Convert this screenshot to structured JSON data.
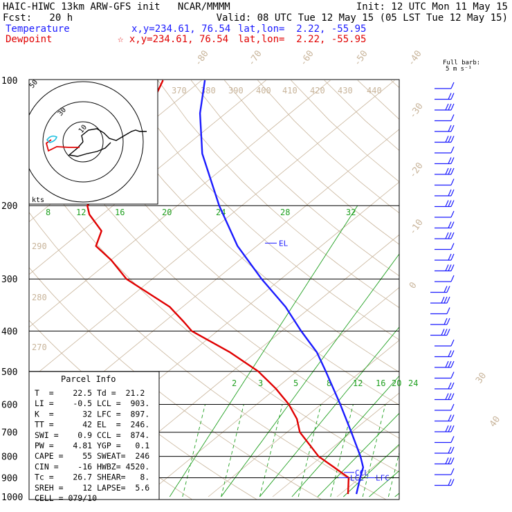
{
  "header": {
    "line1_left": "HAIC-HIWC 13km ARW-GFS init   NCAR/MMMM",
    "line1_right": "Init: 12 UTC Mon 11 May 15",
    "line2_left": "Fcst:   20 h",
    "line2_right": "Valid: 08 UTC Tue 12 May 15 (05 LST Tue 12 May 15)",
    "temp_label": "Temperature",
    "temp_xy": "x,y=234.61, 76.54",
    "temp_latlon": "lat,lon=  2.22, -55.95",
    "dew_label": "Dewpoint",
    "dew_xy": "☆ x,y=234.61, 76.54",
    "dew_latlon": "lat,lon=  2.22, -55.95",
    "barb_note_1": "Full barb:",
    "barb_note_2": "5 m s⁻¹"
  },
  "colors": {
    "temperature": "#1a1aff",
    "dewpoint": "#e00000",
    "isotherm": "#c8b49a",
    "mixing_ratio": "#20a020"
  },
  "parcel_info": {
    "title": "Parcel Info",
    "rows": [
      "T  =    22.5 Td =  21.2",
      "LI =    -0.5 LCL =  903.",
      "K  =      32 LFC =  897.",
      "TT =      42 EL  =  246.",
      "SWI =    0.9 CCL =  874.",
      "PW =    4.81 YGP =   0.1",
      "CAPE =    55 SWEAT=  246",
      "CIN =    -16 HWBZ= 4520.",
      "Tc =    26.7 SHEAR=   8.",
      "SREH =    12 LAPSE=  5.6",
      "CELL = 079/10"
    ]
  },
  "level_labels": {
    "el": "EL",
    "ccl": "CCL",
    "lcl": "LCL",
    "lfc": "LFC",
    "hodo_kts": "kts"
  },
  "chart_data": {
    "type": "line",
    "title": "",
    "pressure_levels": [
      "100",
      "200",
      "300",
      "400",
      "500",
      "600",
      "700",
      "800",
      "900",
      "1000"
    ],
    "isotherm_labels": [
      "-80",
      "-70",
      "-60",
      "-50",
      "-40",
      "-30",
      "-20",
      "-10",
      "0",
      "30",
      "40"
    ],
    "theta_labels": [
      "370",
      "380",
      "390",
      "400",
      "410",
      "420",
      "430",
      "440",
      "290",
      "280",
      "270"
    ],
    "mixing_ratio_upper": [
      "8",
      "12",
      "16",
      "20",
      "24",
      "28",
      "32"
    ],
    "mixing_ratio_lower": [
      "2",
      "3",
      "5",
      "8",
      "12",
      "16",
      "20",
      "24"
    ],
    "hodograph_rings": [
      "10",
      "30",
      "50"
    ],
    "series": [
      {
        "name": "Temperature",
        "p": [
          985,
          950,
          900,
          850,
          800,
          700,
          600,
          500,
          450,
          400,
          350,
          300,
          250,
          200,
          150,
          120,
          100
        ],
        "t": [
          22.5,
          21.5,
          20.0,
          18.5,
          16.0,
          10.0,
          3.0,
          -5.5,
          -10.5,
          -17.0,
          -24.0,
          -33.0,
          -43.0,
          -53.5,
          -66.0,
          -74.0,
          -79.5
        ]
      },
      {
        "name": "Dewpoint",
        "p": [
          985,
          950,
          900,
          850,
          800,
          700,
          650,
          600,
          550,
          500,
          450,
          400,
          380,
          350,
          300,
          270,
          250,
          230,
          210,
          200,
          180,
          150,
          130,
          110,
          100
        ],
        "t": [
          21.2,
          20.0,
          18.2,
          14.0,
          9.5,
          2.0,
          -1.0,
          -5.0,
          -10.0,
          -16.0,
          -24.0,
          -34.0,
          -37.0,
          -42.0,
          -54.0,
          -60.0,
          -65.0,
          -67.0,
          -72.0,
          -74.0,
          -75.0,
          -80.0,
          -83.0,
          -84.0,
          -86.0
        ]
      }
    ],
    "yscale": "log-pressure",
    "ylim": [
      1000,
      100
    ]
  }
}
